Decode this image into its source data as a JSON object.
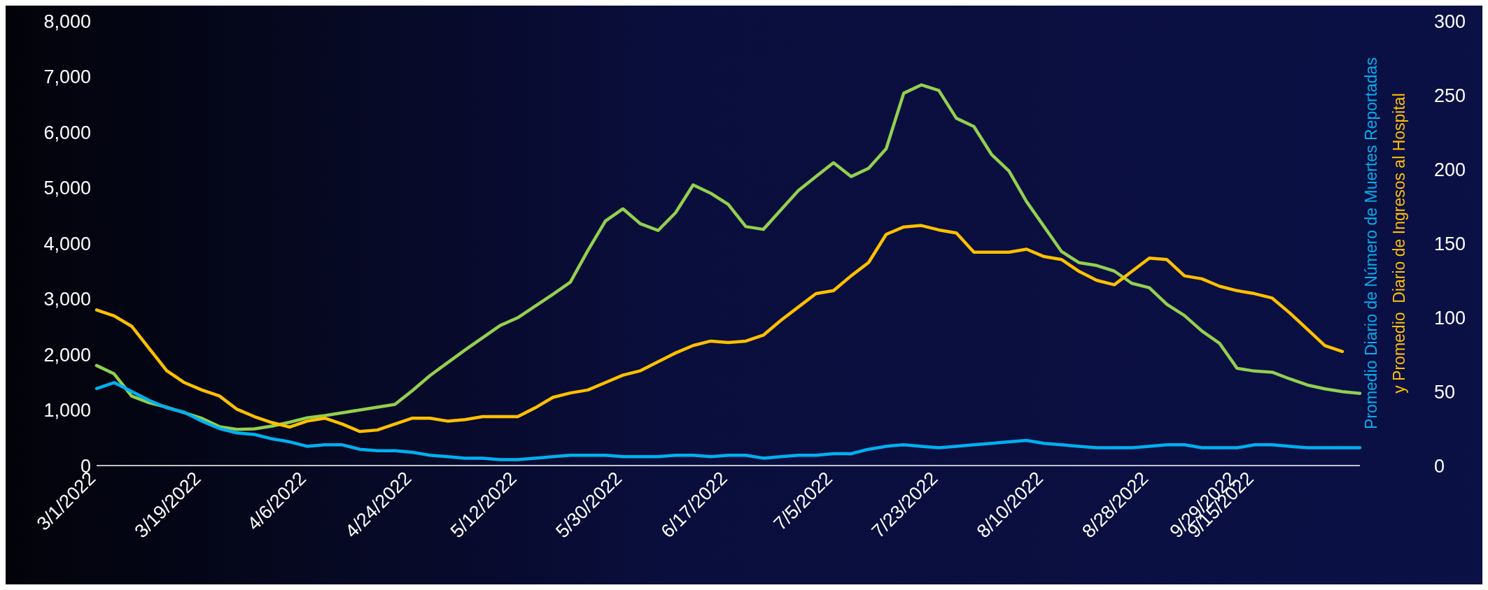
{
  "chart_data": {
    "type": "line",
    "y2label": "Promedio Diario de Número de Muertes Reportadas\ny Promedio  Diario de Ingresos al Hospital",
    "categories": [
      "3/1/2022",
      null,
      null,
      null,
      null,
      null,
      "3/19/2022",
      null,
      null,
      null,
      null,
      null,
      "4/6/2022",
      null,
      null,
      null,
      null,
      null,
      "4/24/2022",
      null,
      null,
      null,
      null,
      null,
      "5/12/2022",
      null,
      null,
      null,
      null,
      null,
      "5/30/2022",
      null,
      null,
      null,
      null,
      null,
      "6/17/2022",
      null,
      null,
      null,
      null,
      null,
      "7/5/2022",
      null,
      null,
      null,
      null,
      null,
      "7/23/2022",
      null,
      null,
      null,
      null,
      null,
      "8/10/2022",
      null,
      null,
      null,
      null,
      null,
      "8/28/2022",
      null,
      null,
      null,
      null,
      "9/29/2022",
      "9/15/2022",
      null,
      null,
      null,
      null,
      null,
      null
    ],
    "series": [
      {
        "color": "#92d050",
        "values": [
          1800,
          1650,
          1250,
          1130,
          1050,
          950,
          850,
          700,
          650,
          660,
          710,
          780,
          860,
          900,
          950,
          1000,
          1050,
          1100,
          1350,
          1620,
          1850,
          2080,
          2300,
          2520,
          2660,
          2870,
          3080,
          3300,
          3870,
          4400,
          4620,
          4350,
          4230,
          4550,
          5050,
          4900,
          4700,
          4300,
          4250,
          4600,
          4950,
          5200,
          5450,
          5200,
          5350,
          5700,
          6700,
          6850,
          6750,
          6250,
          6100,
          5600,
          5300,
          4750,
          4300,
          3850,
          3650,
          3600,
          3500,
          3280,
          3200,
          2900,
          2700,
          2420,
          2200,
          1750,
          1700,
          1680,
          1560,
          1450,
          1380,
          1330,
          1300
        ]
      },
      {
        "color": "#ffc000",
        "axis": "y2",
        "values": [
          105,
          101,
          94,
          79,
          64,
          56,
          51,
          47,
          38,
          33,
          29,
          26,
          30,
          32,
          28,
          23,
          24,
          28,
          32,
          32,
          30,
          31,
          33,
          33,
          33,
          39,
          46,
          49,
          51,
          56,
          61,
          64,
          70,
          76,
          81,
          84,
          83,
          84,
          88,
          98,
          107,
          116,
          118,
          128,
          137,
          156,
          161,
          162,
          159,
          157,
          144,
          144,
          144,
          146,
          141,
          139,
          131,
          125,
          122,
          131,
          140,
          139,
          128,
          126,
          121,
          118,
          116,
          113,
          103,
          92,
          81,
          77,
          null
        ]
      },
      {
        "color": "#00b0f0",
        "axis": "y2",
        "values": [
          52,
          56,
          50,
          44,
          39,
          36,
          30,
          25,
          22,
          21,
          18,
          16,
          13,
          14,
          14,
          11,
          10,
          10,
          9,
          7,
          6,
          5,
          5,
          4,
          4,
          5,
          6,
          7,
          7,
          7,
          6,
          6,
          6,
          7,
          7,
          6,
          7,
          7,
          5,
          6,
          7,
          7,
          8,
          8,
          11,
          13,
          14,
          13,
          12,
          13,
          14,
          15,
          16,
          17,
          15,
          14,
          13,
          12,
          12,
          12,
          13,
          14,
          14,
          12,
          12,
          12,
          14,
          14,
          13,
          12,
          12,
          12,
          12
        ]
      }
    ],
    "ylim": [
      0,
      8000
    ],
    "yticks": [
      0,
      {
        "value": 1000,
        "label": "1,000"
      },
      {
        "value": 2000,
        "label": "2,000"
      },
      {
        "value": 3000,
        "label": "3,000"
      },
      {
        "value": 4000,
        "label": "4,000"
      },
      {
        "value": 5000,
        "label": "5,000"
      },
      {
        "value": 6000,
        "label": "6,000"
      },
      {
        "value": 7000,
        "label": "7,000"
      },
      {
        "value": 8000,
        "label": "8,000"
      }
    ],
    "y2lim": [
      0,
      300
    ],
    "y2ticks": [
      0,
      50,
      100,
      150,
      200,
      250,
      300
    ]
  }
}
